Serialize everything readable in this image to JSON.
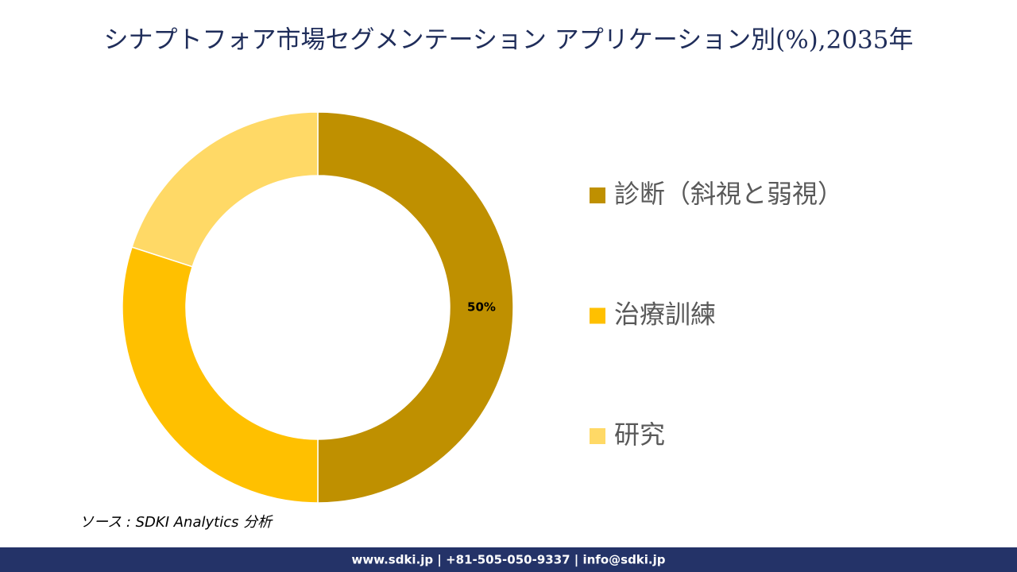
{
  "chart_data": {
    "type": "pie",
    "title": "シナプトフォア市場セグメンテーション アプリケーション別(%),2035年",
    "categories": [
      "診断（斜視と弱視）",
      "治療訓練",
      "研究"
    ],
    "values": [
      50,
      30,
      20
    ],
    "value_labels": [
      "50%",
      null,
      null
    ],
    "colors": [
      "#bf9000",
      "#ffc000",
      "#ffd966"
    ],
    "donut": true,
    "legend": "right"
  },
  "source": "ソース : SDKI Analytics 分析",
  "footer": "www.sdki.jp | +81-505-050-9337 | info@sdki.jp"
}
